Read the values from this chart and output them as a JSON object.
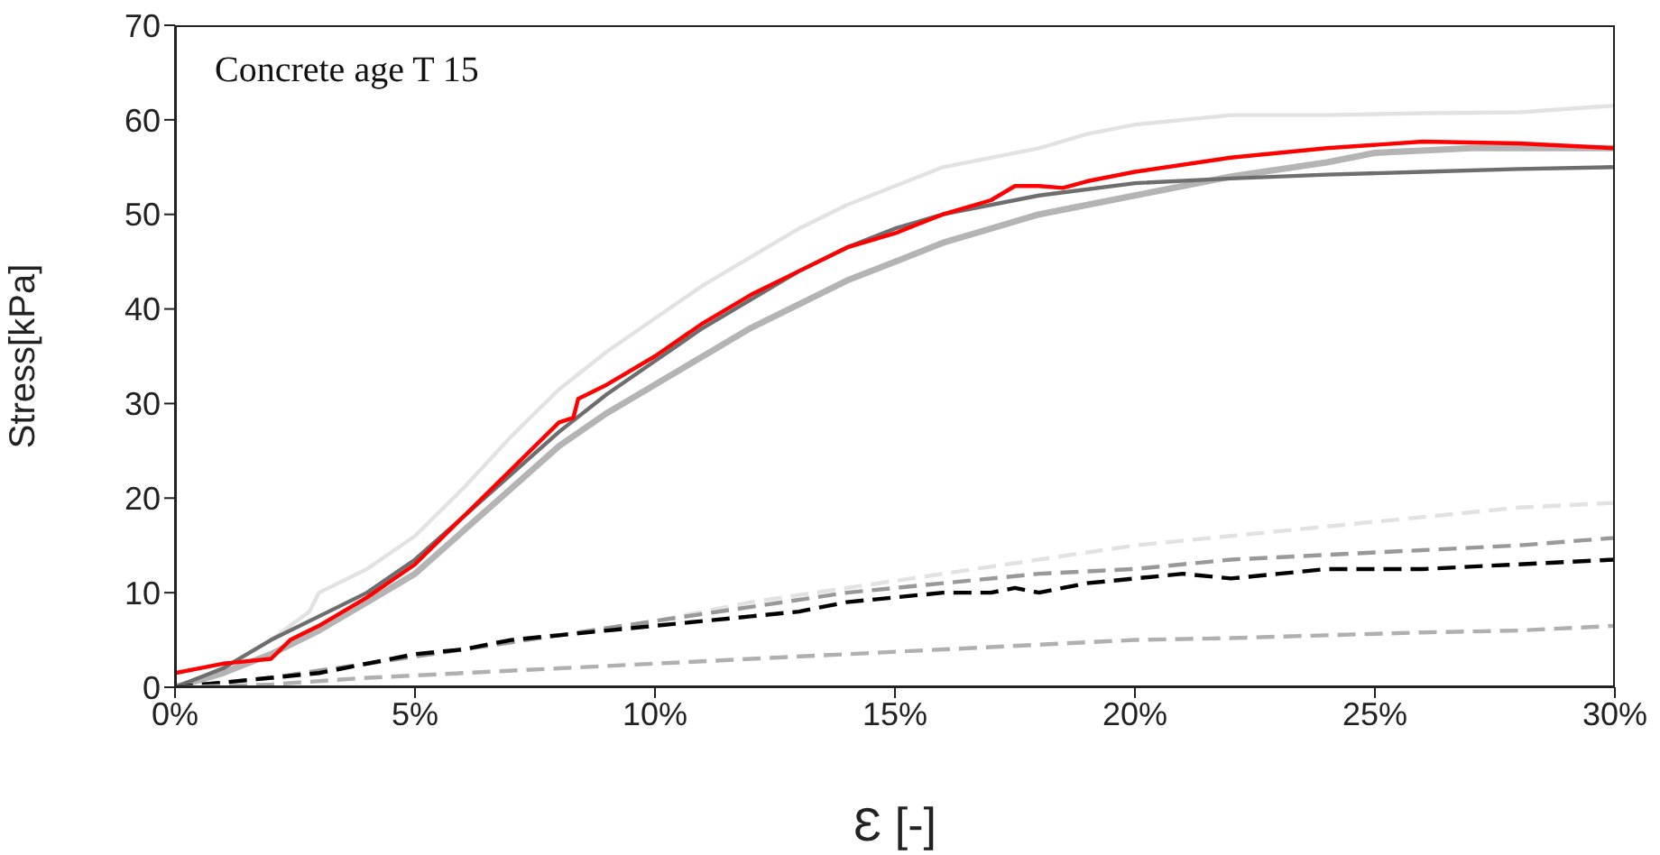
{
  "chart_data": {
    "type": "line",
    "xlabel": "Ɛ [-]",
    "ylabel": "Stress[kPa]",
    "annotations": [
      "Concrete age T 15"
    ],
    "xlim": [
      0,
      30
    ],
    "xticks": [
      {
        "value": 0,
        "label": "0%"
      },
      {
        "value": 5,
        "label": "5%"
      },
      {
        "value": 10,
        "label": "10%"
      },
      {
        "value": 15,
        "label": "15%"
      },
      {
        "value": 20,
        "label": "20%"
      },
      {
        "value": 25,
        "label": "25%"
      },
      {
        "value": 30,
        "label": "30%"
      }
    ],
    "ylim": [
      0,
      70
    ],
    "yticks": [
      0,
      10,
      20,
      30,
      40,
      50,
      60,
      70
    ],
    "grid": false,
    "marker": "none",
    "series": [
      {
        "color": "#e2e2e2",
        "line_style": "solid",
        "x": [
          0,
          1,
          2,
          2.8,
          3,
          4,
          5,
          6,
          7,
          8,
          9,
          10,
          11,
          12,
          13,
          14,
          15,
          16,
          17,
          18,
          19,
          20,
          22,
          24,
          26,
          28,
          30
        ],
        "values": [
          0,
          2,
          5,
          8,
          10,
          12.5,
          16,
          21,
          26.5,
          31.5,
          35.5,
          39,
          42.5,
          45.5,
          48.5,
          51,
          53,
          55,
          56,
          57,
          58.5,
          59.5,
          60.5,
          60.5,
          60.7,
          60.8,
          61.5
        ]
      },
      {
        "color": "#b4b4b4",
        "line_style": "solid",
        "x": [
          0,
          1,
          2,
          3,
          4,
          5,
          6,
          7,
          8,
          9,
          10,
          11,
          12,
          13,
          14,
          15,
          16,
          18,
          20,
          22,
          24,
          25,
          27,
          30
        ],
        "values": [
          0,
          1.5,
          3.5,
          6,
          9,
          12,
          16.5,
          21,
          25.5,
          29,
          32,
          35,
          38,
          40.5,
          43,
          45,
          47,
          50,
          52,
          54,
          55.5,
          56.5,
          57,
          57
        ]
      },
      {
        "color": "#6e6e6e",
        "line_style": "solid",
        "x": [
          0,
          1,
          2,
          3,
          4,
          5,
          6,
          7,
          8,
          9,
          10,
          11,
          12,
          13,
          14,
          15,
          16,
          18,
          20,
          22,
          24,
          26,
          28,
          30
        ],
        "values": [
          0,
          2,
          5,
          7.5,
          10,
          13.5,
          18,
          22.5,
          27,
          31,
          34.5,
          38,
          41,
          44,
          46.5,
          48.5,
          50,
          52,
          53.3,
          53.8,
          54.2,
          54.5,
          54.8,
          55
        ]
      },
      {
        "color": "#ff0000",
        "line_style": "solid",
        "x": [
          0,
          1,
          2,
          2.4,
          3,
          4,
          5,
          6,
          7,
          8,
          8.3,
          8.4,
          9,
          10,
          11,
          12,
          13,
          14,
          15,
          16,
          17,
          17.5,
          18,
          18.5,
          19,
          20,
          22,
          24,
          26,
          28,
          30
        ],
        "values": [
          1.5,
          2.5,
          3,
          5,
          6.5,
          9.5,
          13,
          18,
          23,
          28,
          28.5,
          30.5,
          32,
          35,
          38.5,
          41.5,
          44,
          46.5,
          48,
          50,
          51.5,
          53,
          53,
          52.8,
          53.5,
          54.5,
          56,
          57,
          57.7,
          57.5,
          57
        ]
      },
      {
        "color": "#e2e2e2",
        "line_style": "dashed",
        "x": [
          0,
          2,
          4,
          6,
          8,
          10,
          12,
          14,
          16,
          18,
          20,
          22,
          24,
          26,
          28,
          30
        ],
        "values": [
          0,
          1,
          2.5,
          4,
          5.5,
          7,
          9,
          10.5,
          12,
          13.5,
          15,
          16,
          17,
          18,
          19,
          19.5
        ]
      },
      {
        "color": "#999999",
        "line_style": "dashed",
        "x": [
          0,
          2,
          4,
          6,
          8,
          10,
          12,
          14,
          16,
          18,
          20,
          22,
          24,
          26,
          28,
          30
        ],
        "values": [
          0,
          1,
          2.5,
          4,
          5.5,
          7,
          8.5,
          10,
          11,
          12,
          12.5,
          13.5,
          14,
          14.5,
          15,
          15.8
        ]
      },
      {
        "color": "#000000",
        "line_style": "dashed",
        "x": [
          0,
          1,
          2,
          3,
          4,
          5,
          6,
          7,
          8,
          9,
          10,
          11,
          12,
          13,
          14,
          15,
          16,
          17,
          17.5,
          18,
          19,
          20,
          21,
          22,
          23,
          24,
          25,
          26,
          28,
          30
        ],
        "values": [
          0,
          0.5,
          1,
          1.5,
          2.5,
          3.5,
          4,
          5,
          5.5,
          6,
          6.5,
          7,
          7.5,
          8,
          9,
          9.5,
          10,
          10,
          10.5,
          10,
          11,
          11.5,
          12,
          11.5,
          12,
          12.5,
          12.5,
          12.5,
          13,
          13.5
        ]
      },
      {
        "color": "#b0b0b0",
        "line_style": "dashed",
        "x": [
          0,
          2,
          4,
          6,
          8,
          10,
          12,
          14,
          16,
          18,
          20,
          22,
          24,
          26,
          28,
          30
        ],
        "values": [
          0,
          0.3,
          1,
          1.5,
          2,
          2.5,
          3,
          3.5,
          4,
          4.5,
          5,
          5.2,
          5.5,
          5.8,
          6,
          6.5
        ]
      }
    ]
  }
}
